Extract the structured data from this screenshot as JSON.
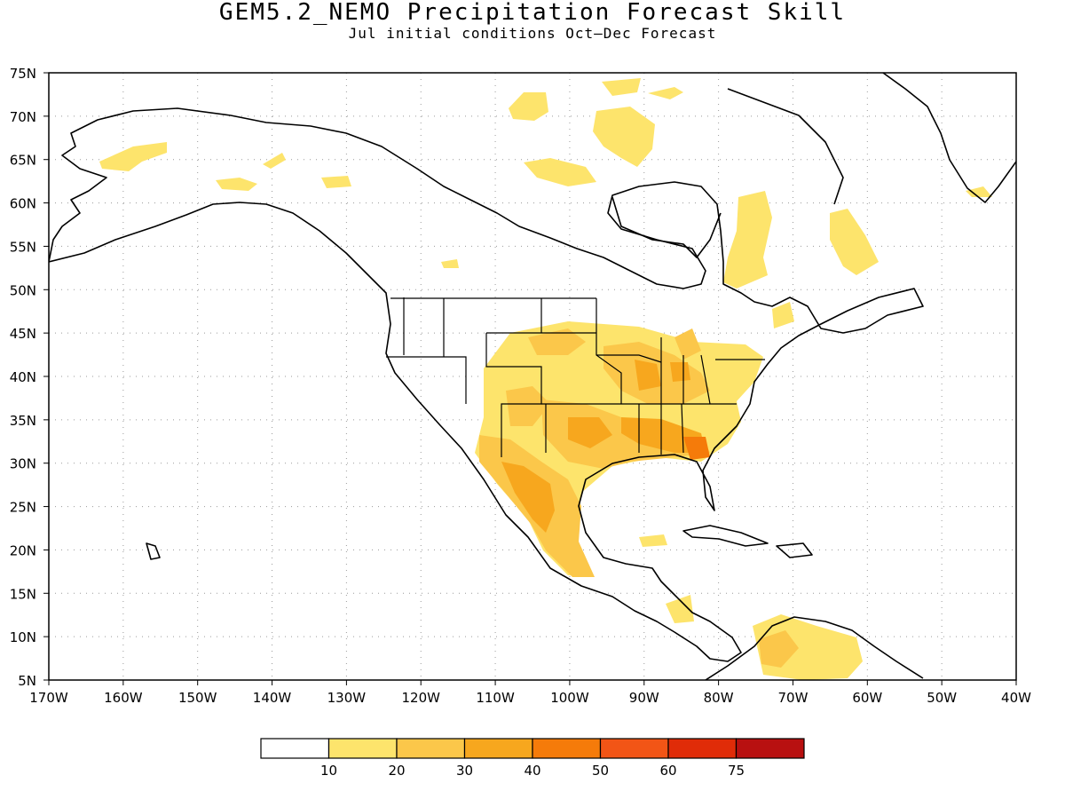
{
  "title": "GEM5.2_NEMO Precipitation Forecast Skill",
  "subtitle": "Jul initial conditions  Oct–Dec Forecast",
  "map": {
    "lon_range": [
      -170,
      -40
    ],
    "lat_range": [
      5,
      75
    ],
    "lon_tick_labels": [
      "170W",
      "160W",
      "150W",
      "140W",
      "130W",
      "120W",
      "110W",
      "100W",
      "90W",
      "80W",
      "70W",
      "60W",
      "50W",
      "40W"
    ],
    "lat_tick_labels": [
      "5N",
      "10N",
      "15N",
      "20N",
      "25N",
      "30N",
      "35N",
      "40N",
      "45N",
      "50N",
      "55N",
      "60N",
      "65N",
      "70N",
      "75N"
    ],
    "grid": "dotted"
  },
  "colorbar": {
    "labels": [
      "10",
      "20",
      "30",
      "40",
      "50",
      "60",
      "75"
    ],
    "colors": [
      "#ffffff",
      "#fde46c",
      "#fbc74a",
      "#f7a71e",
      "#f57b0a",
      "#f25516",
      "#e02c08",
      "#b81010"
    ]
  }
}
